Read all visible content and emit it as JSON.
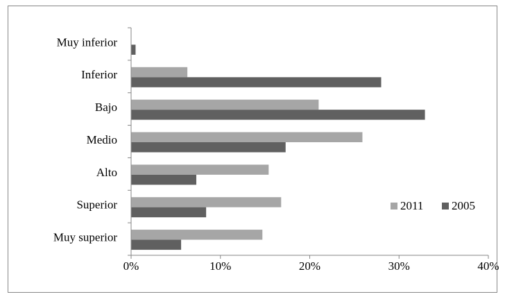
{
  "chart_data": {
    "type": "bar",
    "orientation": "horizontal",
    "categories": [
      "Muy inferior",
      "Inferior",
      "Bajo",
      "Medio",
      "Alto",
      "Superior",
      "Muy superior"
    ],
    "series": [
      {
        "name": "2011",
        "color": "#a6a6a6",
        "values": [
          null,
          6.3,
          21.0,
          25.9,
          15.4,
          16.8,
          14.7
        ]
      },
      {
        "name": "2005",
        "color": "#606060",
        "values": [
          0.5,
          28.0,
          32.9,
          17.3,
          7.3,
          8.4,
          5.6
        ]
      }
    ],
    "xlim": [
      0,
      40
    ],
    "xticks": [
      {
        "value": 0,
        "label": "0%"
      },
      {
        "value": 10,
        "label": "10%"
      },
      {
        "value": 20,
        "label": "20%"
      },
      {
        "value": 30,
        "label": "30%"
      },
      {
        "value": 40,
        "label": "40%"
      }
    ],
    "grid": false,
    "legend": "right"
  }
}
